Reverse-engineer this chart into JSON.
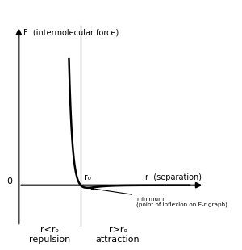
{
  "f_label": "F  (intermolecular force)",
  "r_label": "r  (separation)",
  "zero_label": "0",
  "r0_label": "rₒ",
  "repulsion_label": "r<rₒ\nrepulsion",
  "attraction_label": "r>rₒ\nattraction",
  "min_annotation_line1": "minimum",
  "min_annotation_line2": "(point of inflexion on E-r graph)",
  "curve_color": "#000000",
  "axis_color": "#000000",
  "vline_color": "#aaaaaa",
  "bg_color": "#ffffff",
  "r0_x": 2.0,
  "x_plot_start": 1.62,
  "x_plot_end": 5.5,
  "y_clip_max": 6.0,
  "y_clip_min": -1.5,
  "x_axis_start": 0.0,
  "x_axis_end": 6.0,
  "y_axis_start": -1.8,
  "y_axis_end": 7.0,
  "xlim_min": -0.5,
  "xlim_max": 6.5,
  "ylim_min": -2.5,
  "ylim_max": 8.0
}
